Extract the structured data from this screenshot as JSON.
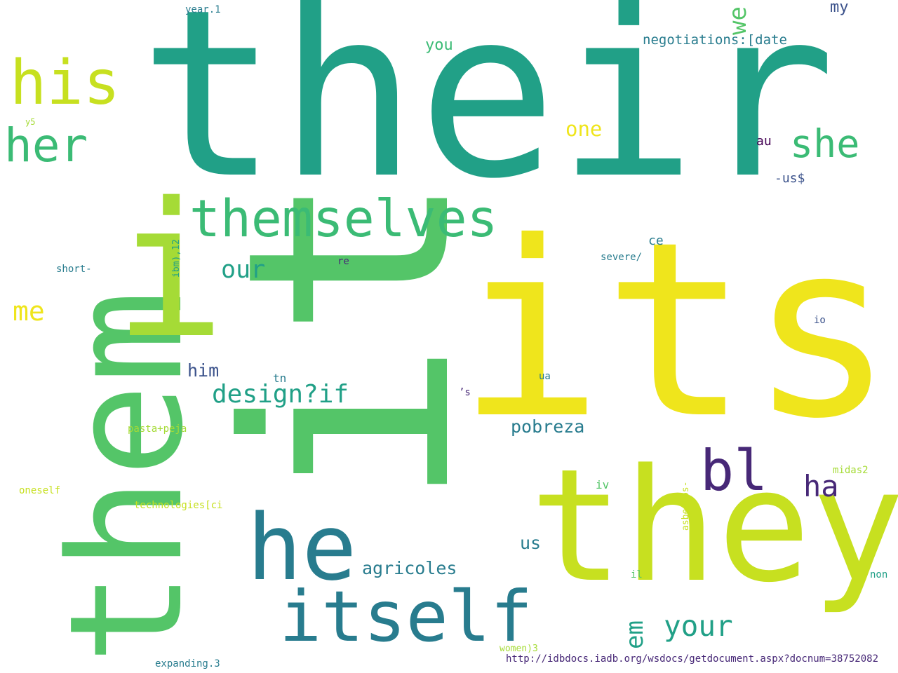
{
  "colors": {
    "background": "#ffffff",
    "teal": "#21a087",
    "green": "#54c568",
    "lime": "#a5db36",
    "yellow_green": "#c7e020",
    "yellow": "#efe51c",
    "mid_green": "#3bbb75",
    "blue_teal": "#287c8e",
    "indigo": "#3b528b",
    "purple": "#472877",
    "dark_purple": "#440154"
  },
  "words": [
    {
      "id": "their",
      "text": "their"
    },
    {
      "id": "its",
      "text": "its"
    },
    {
      "id": "it",
      "text": "it"
    },
    {
      "id": "they",
      "text": "they"
    },
    {
      "id": "them",
      "text": "them"
    },
    {
      "id": "i",
      "text": "i"
    },
    {
      "id": "he",
      "text": "he"
    },
    {
      "id": "itself",
      "text": "itself"
    },
    {
      "id": "themselves",
      "text": "themselves"
    },
    {
      "id": "his",
      "text": "his"
    },
    {
      "id": "her",
      "text": "her"
    },
    {
      "id": "she",
      "text": "she"
    },
    {
      "id": "bl",
      "text": "bl"
    },
    {
      "id": "ha",
      "text": "ha"
    },
    {
      "id": "your",
      "text": "your"
    },
    {
      "id": "em",
      "text": "em"
    },
    {
      "id": "design",
      "text": "design?if"
    },
    {
      "id": "our",
      "text": "our"
    },
    {
      "id": "me",
      "text": "me"
    },
    {
      "id": "we",
      "text": "we"
    },
    {
      "id": "one",
      "text": "one"
    },
    {
      "id": "you",
      "text": "you"
    },
    {
      "id": "him",
      "text": "him"
    },
    {
      "id": "agricoles",
      "text": "agricoles"
    },
    {
      "id": "pobreza",
      "text": "pobreza"
    },
    {
      "id": "us",
      "text": "us"
    },
    {
      "id": "my",
      "text": "my"
    },
    {
      "id": "negotiations",
      "text": "negotiations:[date"
    },
    {
      "id": "au",
      "text": "au"
    },
    {
      "id": "usd",
      "text": "-us$"
    },
    {
      "id": "ce",
      "text": "ce"
    },
    {
      "id": "severe",
      "text": "severe/"
    },
    {
      "id": "re",
      "text": "re"
    },
    {
      "id": "short",
      "text": "short-"
    },
    {
      "id": "ibm",
      "text": "ibm),12"
    },
    {
      "id": "io",
      "text": "io"
    },
    {
      "id": "tn",
      "text": "tn"
    },
    {
      "id": "ua",
      "text": "ua"
    },
    {
      "id": "s",
      "text": "’s"
    },
    {
      "id": "pasta",
      "text": "pasta+peja"
    },
    {
      "id": "midas",
      "text": "midas2"
    },
    {
      "id": "oneself",
      "text": "oneself"
    },
    {
      "id": "technologies",
      "text": "technologies[ci"
    },
    {
      "id": "iv",
      "text": "iv"
    },
    {
      "id": "asbestos",
      "text": "asbestos-"
    },
    {
      "id": "il",
      "text": "il"
    },
    {
      "id": "non",
      "text": "non"
    },
    {
      "id": "women",
      "text": "women)3"
    },
    {
      "id": "expanding",
      "text": "expanding.3"
    },
    {
      "id": "url",
      "text": "http://idbdocs.iadb.org/wsdocs/getdocument.aspx?docnum=38752082"
    },
    {
      "id": "year",
      "text": "year.1"
    },
    {
      "id": "y5",
      "text": "y5"
    }
  ]
}
